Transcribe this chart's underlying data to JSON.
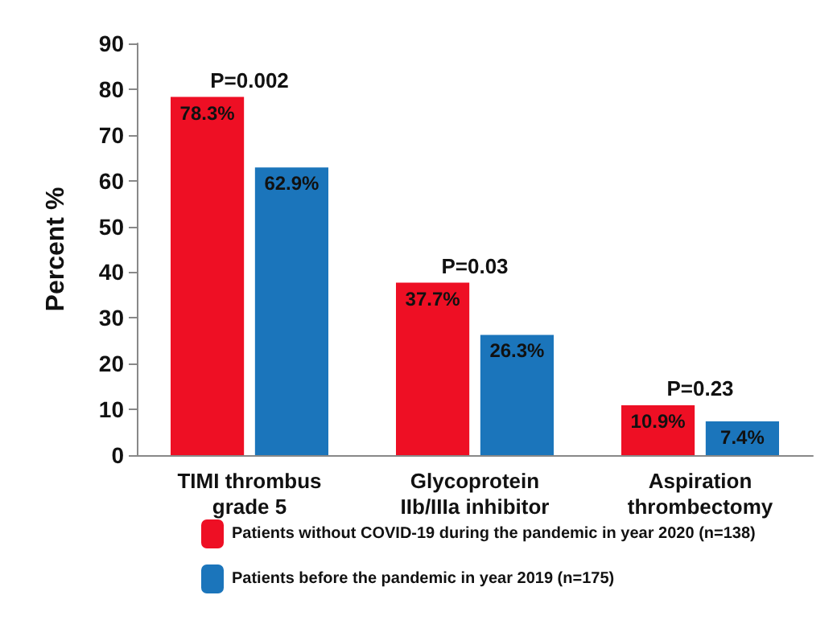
{
  "chart_data": {
    "type": "bar",
    "ylabel": "Percent %",
    "categories": [
      "TIMI thrombus\ngrade 5",
      "Glycoprotein\nIIb/IIIa inhibitor",
      "Aspiration\nthrombectomy"
    ],
    "series": [
      {
        "name": "Patients without COVID-19 during the pandemic in year 2020 (n=138)",
        "color": "#ee0f24",
        "values": [
          78.3,
          37.7,
          10.9
        ],
        "value_labels": [
          "78.3%",
          "37.7%",
          "10.9%"
        ]
      },
      {
        "name": "Patients before the pandemic in year 2019 (n=175)",
        "color": "#1b75bb",
        "values": [
          62.9,
          26.3,
          7.4
        ],
        "value_labels": [
          "62.9%",
          "26.3%",
          "7.4%"
        ]
      }
    ],
    "ylim": [
      0,
      90
    ],
    "yticks": [
      0,
      10,
      20,
      30,
      40,
      50,
      60,
      70,
      80,
      90
    ],
    "grid": false,
    "legend": "bottom",
    "annotations": [
      "P=0.002",
      "P=0.03",
      "P=0.23"
    ]
  }
}
